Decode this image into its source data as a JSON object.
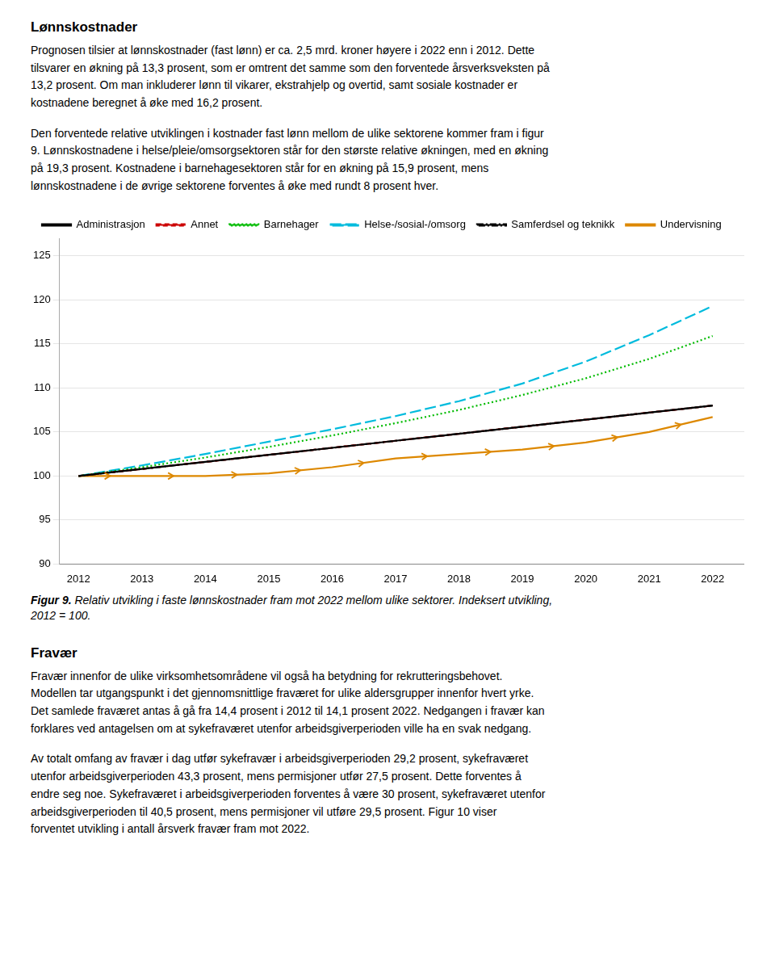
{
  "chart_data": {
    "type": "line",
    "title": "Lønnskostnader",
    "x": [
      2012,
      2013,
      2014,
      2015,
      2016,
      2017,
      2018,
      2019,
      2020,
      2021,
      2022
    ],
    "series": [
      {
        "name": "Administrasjon",
        "color": "#000000",
        "line_style": "solid",
        "values": [
          100,
          100.8,
          101.6,
          102.4,
          103.2,
          104.0,
          104.8,
          105.6,
          106.4,
          107.2,
          108.0
        ]
      },
      {
        "name": "Annet",
        "color": "#cc0000",
        "line_style": "dashed",
        "values": [
          100,
          100.8,
          101.6,
          102.4,
          103.2,
          104.0,
          104.8,
          105.6,
          106.4,
          107.2,
          108.0
        ]
      },
      {
        "name": "Barnehager",
        "color": "#00bb00",
        "line_style": "dotted",
        "values": [
          100,
          101.0,
          102.1,
          103.3,
          104.6,
          106.0,
          107.5,
          109.2,
          111.1,
          113.3,
          115.9
        ]
      },
      {
        "name": "Helse-/sosial-/omsorg",
        "color": "#00bbdd",
        "line_style": "longdash",
        "values": [
          100,
          101.2,
          102.5,
          103.9,
          105.3,
          106.8,
          108.5,
          110.5,
          113.0,
          116.0,
          119.3
        ]
      },
      {
        "name": "Samferdsel og teknikk",
        "color": "#000000",
        "line_style": "dashdot",
        "values": [
          100,
          100.8,
          101.6,
          102.4,
          103.2,
          104.0,
          104.8,
          105.6,
          106.4,
          107.2,
          108.0
        ]
      },
      {
        "name": "Undervisning",
        "color": "#dd8800",
        "line_style": "solid",
        "marker": "arrow",
        "values": [
          100,
          100.0,
          100.0,
          100.3,
          101.0,
          102.0,
          102.5,
          103.0,
          103.8,
          105.0,
          106.7
        ]
      }
    ],
    "xlim": [
      2011.7,
      2022.5
    ],
    "xticks": [
      2012,
      2013,
      2014,
      2015,
      2016,
      2017,
      2018,
      2019,
      2020,
      2021,
      2022
    ],
    "ylim": [
      90,
      127
    ],
    "yticks": [
      90,
      95,
      100,
      105,
      110,
      115,
      120,
      125
    ],
    "grid": true,
    "legend": "upper left",
    "annotations": [
      {
        "text": "Prognosen tilsier at lønnskostnader (fast lønn) er ca. 2,5 mrd. kroner høyere i 2022 enn i 2012. Dette\ntilsvarer en økning på 13,3 prosent, som er omtrent det samme som den forventede årsverksveksten på\n13,2 prosent. Om man inkluderer lønn til vikarer, ekstrahjelp og overtid, samt sosiale kostnader er\nkostnadene beregnet å øke med 16,2 prosent.",
        "style": "body"
      },
      {
        "text": "Den forventede relative utviklingen i kostnader fast lønn mellom de ulike sektorene kommer fram i figur\n9. Lønnskostnadene i helse/pleie/omsorgsektoren står for den største relative økningen, med en økning\npå 19,3 prosent. Kostnadene i barnehagesektoren står for en økning på 15,9 prosent, mens\nlønnskostnadene i de øvrige sektorene forventes å øke med rundt 8 prosent hver.",
        "style": "body"
      },
      {
        "text": "Figur 9.",
        "style": "caption_bold"
      },
      {
        "text": " Relativ utvikling i faste lønnskostnader fram mot 2022 mellom ulike sektorer. Indeksert utvikling,\n2012 = 100.",
        "style": "caption"
      },
      {
        "text": "Fravær",
        "style": "heading"
      },
      {
        "text": "Fravær innenfor de ulike virksomhetsområdene vil også ha betydning for rekrutteringsbehovet.\nModellen tar utgangspunkt i det gjennomsnittlige fraværet for ulike aldersgrupper innenfor hvert yrke.\nDet samlede fraværet antas å gå fra 14,4 prosent i 2012 til 14,1 prosent 2022. Nedgangen i fravær kan\nforklares ved antagelsen om at sykefraværet utenfor arbeidsgiverperioden ville ha en svak nedgang.",
        "style": "body"
      },
      {
        "text": "Av totalt omfang av fravær i dag utfør sykefravær i arbeidsgiverperioden 29,2 prosent, sykefraværet\nutenfor arbeidsgiverperioden 43,3 prosent, mens permisjoner utfør 27,5 prosent. Dette forventes å\nendre seg noe. Sykefraværet i arbeidsgiverperioden forventes å være 30 prosent, sykefraværet utenfor\narbeidsgiverperioden til 40,5 prosent, mens permisjoner vil utføre 29,5 prosent. Figur 10 viser\nforventet utvikling i antall årsverk fravær fram mot 2022.",
        "style": "body"
      }
    ]
  }
}
